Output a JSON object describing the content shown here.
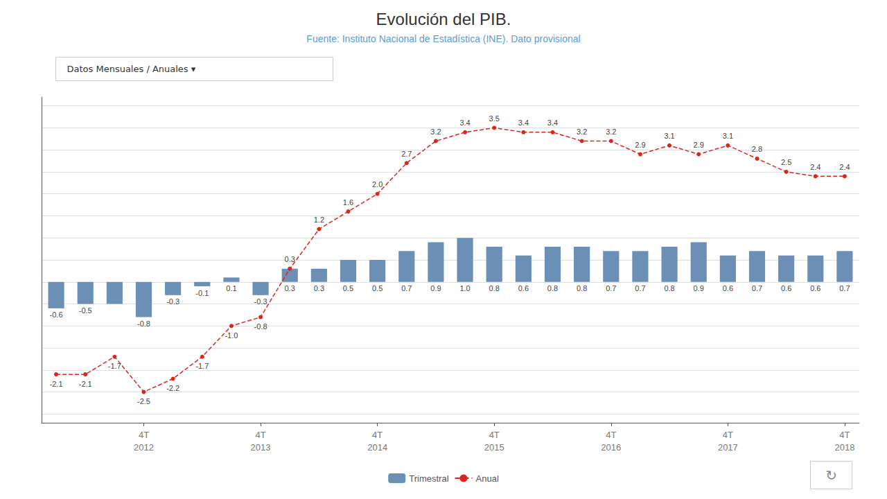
{
  "chart_data": {
    "type": "bar",
    "title": "Evolución del PIB.",
    "subtitle": "Fuente: Instituto Nacional de Estadística (INE). Dato provisional",
    "annotations": [
      "Datos Mensuales / Anuales ▾",
      "↻"
    ],
    "categories": [
      null,
      null,
      null,
      "4T\n2012",
      null,
      null,
      null,
      "4T\n2013",
      null,
      null,
      null,
      "4T\n2014",
      null,
      null,
      null,
      "4T\n2015",
      null,
      null,
      null,
      "4T\n2016",
      null,
      null,
      null,
      "4T\n2017",
      null,
      null,
      null,
      "4T\n2018"
    ],
    "series": [
      {
        "name": "Trimestral",
        "type": "bar",
        "color": "#6b8fb5",
        "data_labels": true,
        "values": [
          -0.6,
          -0.5,
          -0.5,
          -0.8,
          -0.3,
          -0.1,
          0.1,
          -0.3,
          0.3,
          0.3,
          0.5,
          0.5,
          0.7,
          0.9,
          1.0,
          0.8,
          0.6,
          0.8,
          0.8,
          0.7,
          0.7,
          0.8,
          0.9,
          0.6,
          0.7,
          0.6,
          0.6,
          0.7
        ],
        "value_labels": [
          "-0.6",
          "-0.5",
          null,
          "-0.8",
          "-0.3",
          "-0.1",
          "0.1",
          "-0.3",
          "0.3",
          "0.3",
          "0.5",
          "0.5",
          "0.7",
          "0.9",
          "1.0",
          "0.8",
          "0.6",
          "0.8",
          "0.8",
          "0.7",
          "0.7",
          "0.8",
          "0.9",
          "0.6",
          "0.7",
          "0.6",
          "0.6",
          "0.7"
        ]
      },
      {
        "name": "Anual",
        "type": "line",
        "color": "#d9271e",
        "marker": "circle",
        "line_style": "dashed",
        "data_labels": true,
        "values": [
          -2.1,
          -2.1,
          -1.7,
          -2.5,
          -2.2,
          -1.7,
          -1.0,
          -0.8,
          0.3,
          1.2,
          1.6,
          2.0,
          2.7,
          3.2,
          3.4,
          3.5,
          3.4,
          3.4,
          3.2,
          3.2,
          2.9,
          3.1,
          2.9,
          3.1,
          2.8,
          2.5,
          2.4,
          2.4
        ],
        "value_labels": [
          "-2.1",
          "-2.1",
          "-1.7",
          "-2.5",
          "-2.2",
          "-1.7",
          "-1.0",
          "-0.8",
          "0.3",
          "1.2",
          "1.6",
          "2.0",
          "2.7",
          "3.2",
          "3.4",
          "3.5",
          "3.4",
          "3.4",
          "3.2",
          "3.2",
          "2.9",
          "3.1",
          "2.9",
          "3.1",
          "2.8",
          "2.5",
          "2.4",
          "2.4"
        ]
      }
    ],
    "ylim": [
      -3.2,
      4.2
    ],
    "yticks": [
      -3.0,
      -2.5,
      -2.0,
      -1.5,
      -1.0,
      -0.5,
      0.0,
      0.5,
      1.0,
      1.5,
      2.0,
      2.5,
      3.0,
      3.5,
      4.0
    ],
    "grid": true,
    "tick_labels": "x",
    "legend": "bottom"
  }
}
